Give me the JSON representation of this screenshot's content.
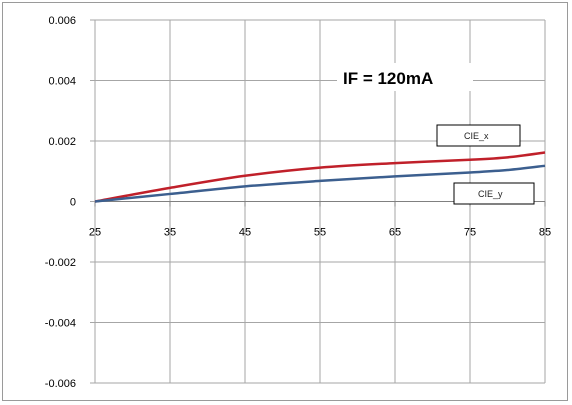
{
  "chart_data": {
    "type": "line",
    "title": "",
    "xlabel": "",
    "ylabel": "",
    "x": [
      25,
      35,
      45,
      55,
      65,
      75,
      80,
      85
    ],
    "xticks": [
      "25",
      "35",
      "45",
      "55",
      "65",
      "75",
      "85"
    ],
    "yticks": [
      "0.006",
      "0.004",
      "0.002",
      "0",
      "-0.002",
      "-0.004",
      "-0.006"
    ],
    "xlim": [
      25,
      85
    ],
    "ylim": [
      -0.006,
      0.006
    ],
    "grid": true,
    "annotation": "IF = 120mA",
    "series": [
      {
        "name": "CIE_x",
        "color": "#c0202a",
        "values": [
          0,
          0.00045,
          0.00085,
          0.00112,
          0.00127,
          0.00138,
          0.00146,
          0.00162
        ]
      },
      {
        "name": "CIE_y",
        "color": "#3c5f8f",
        "values": [
          0,
          0.00025,
          0.0005,
          0.00068,
          0.00083,
          0.00096,
          0.00104,
          0.00118
        ]
      }
    ]
  }
}
